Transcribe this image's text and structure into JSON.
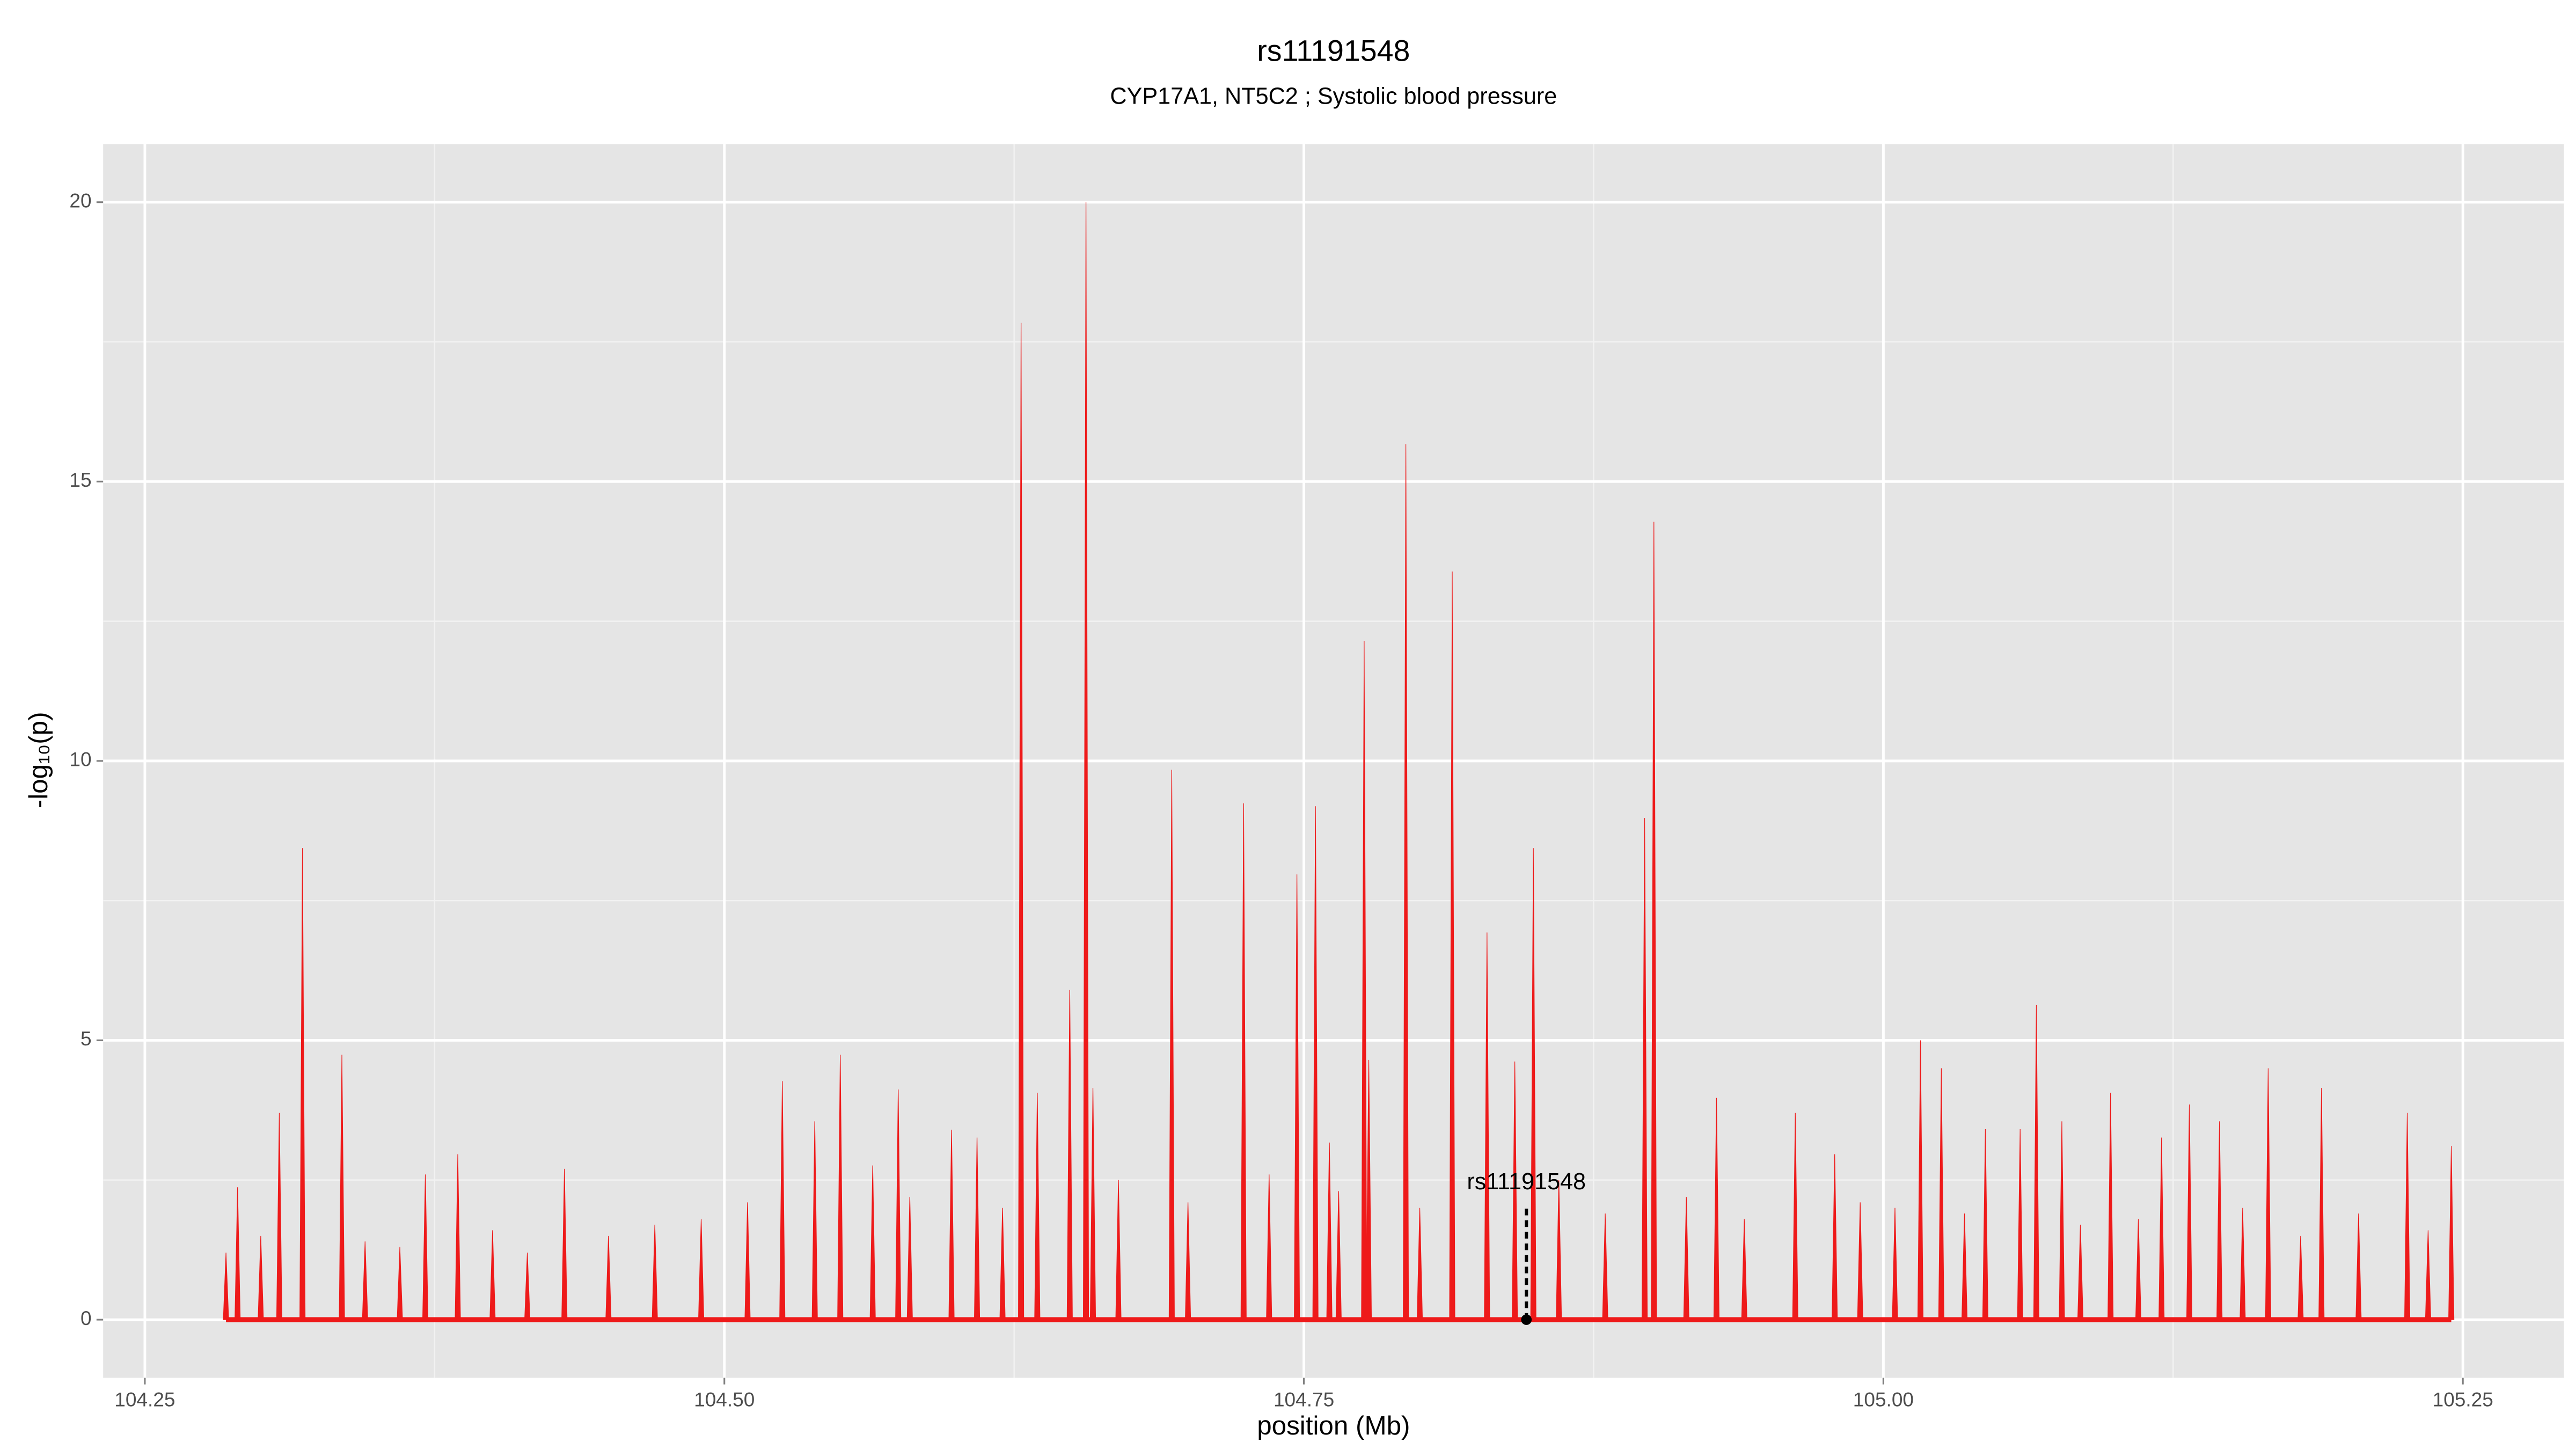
{
  "chart_data": {
    "type": "needle",
    "title": "rs11191548",
    "subtitle": "CYP17A1, NT5C2 ; Systolic blood pressure",
    "xlabel": "position (Mb)",
    "ylabel": "-log₁₀(p)",
    "xlim": [
      104.232,
      105.2936
    ],
    "ylim": [
      -1.04,
      21.04
    ],
    "xticks": [
      104.25,
      {
        "value": 104.5,
        "label": "104.50"
      },
      104.75,
      {
        "value": 105.0,
        "label": "105.00"
      },
      105.25
    ],
    "yticks": [
      0,
      5,
      10,
      15,
      20
    ],
    "minor_xticks": [
      104.375,
      104.625,
      104.875,
      105.125
    ],
    "minor_yticks": [
      2.5,
      7.5,
      12.5,
      17.5
    ],
    "grid": true,
    "series": [
      {
        "color": "#ee1a1a",
        "x": [
          104.285,
          104.29,
          104.3,
          104.308,
          104.318,
          104.335,
          104.345,
          104.36,
          104.371,
          104.385,
          104.4,
          104.415,
          104.431,
          104.45,
          104.47,
          104.49,
          104.51,
          104.525,
          104.539,
          104.55,
          104.564,
          104.575,
          104.58,
          104.598,
          104.609,
          104.62,
          104.628,
          104.635,
          104.649,
          104.656,
          104.659,
          104.67,
          104.693,
          104.7,
          104.724,
          104.735,
          104.747,
          104.755,
          104.761,
          104.765,
          104.776,
          104.778,
          104.794,
          104.8,
          104.814,
          104.829,
          104.841,
          104.849,
          104.86,
          104.88,
          104.897,
          104.901,
          104.915,
          104.928,
          104.94,
          104.962,
          104.979,
          104.99,
          105.005,
          105.016,
          105.025,
          105.035,
          105.044,
          105.059,
          105.066,
          105.077,
          105.085,
          105.098,
          105.11,
          105.12,
          105.132,
          105.145,
          105.155,
          105.166,
          105.18,
          105.189,
          105.205,
          105.226,
          105.235,
          105.245
        ],
        "values": [
          1.2,
          2.37,
          1.5,
          3.7,
          8.44,
          4.74,
          1.4,
          1.3,
          2.6,
          2.96,
          1.6,
          1.2,
          2.7,
          1.5,
          1.7,
          1.8,
          2.1,
          4.27,
          3.55,
          4.74,
          2.76,
          4.12,
          2.2,
          3.4,
          3.26,
          2.0,
          17.84,
          4.06,
          5.9,
          20.0,
          4.15,
          2.5,
          9.84,
          2.1,
          9.24,
          2.6,
          7.97,
          9.19,
          3.17,
          2.3,
          12.15,
          4.65,
          15.67,
          2.0,
          13.39,
          6.93,
          4.62,
          8.44,
          2.5,
          1.9,
          8.98,
          14.28,
          2.2,
          3.97,
          1.8,
          3.7,
          2.96,
          2.1,
          2.0,
          5.0,
          4.5,
          1.9,
          3.41,
          3.41,
          5.63,
          3.55,
          1.7,
          4.06,
          1.8,
          3.26,
          3.85,
          3.55,
          2.0,
          4.5,
          1.5,
          4.15,
          1.9,
          3.7,
          1.6,
          3.11
        ]
      }
    ],
    "annotation": {
      "label": "rs11191548",
      "x": 104.846,
      "y": 0,
      "line_top": 2.0
    }
  }
}
